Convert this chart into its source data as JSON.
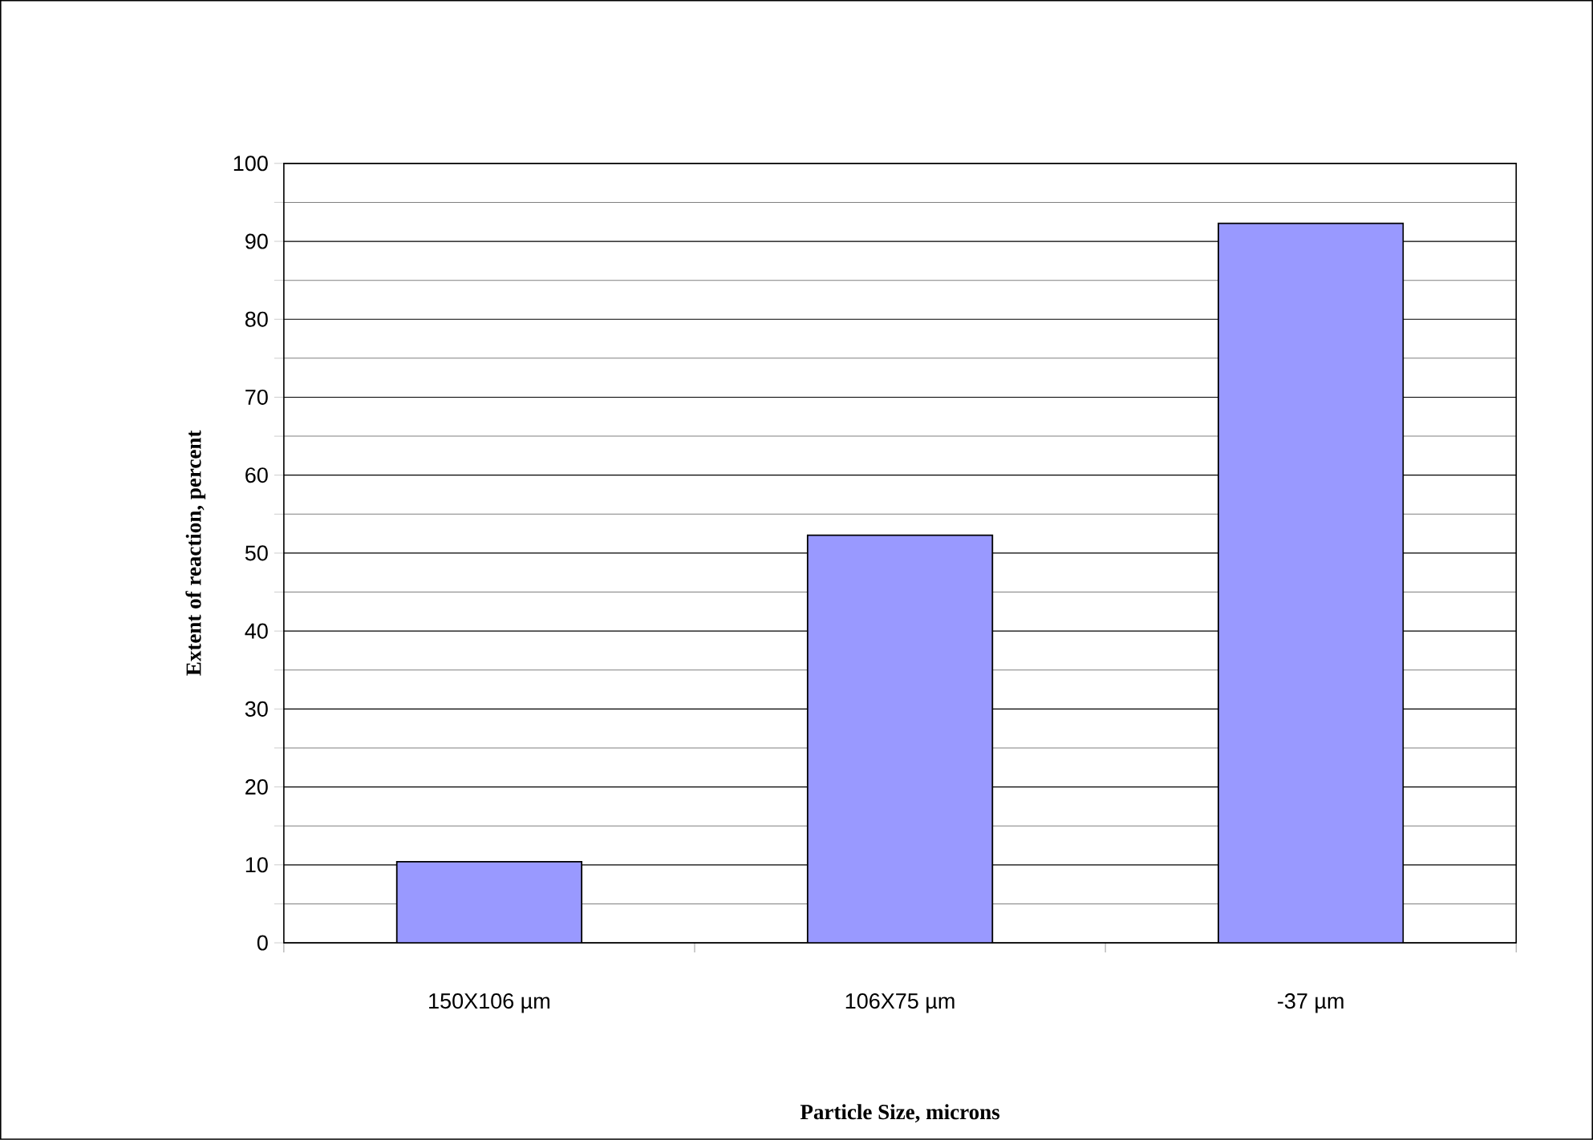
{
  "chart_data": {
    "type": "bar",
    "xlabel": "Particle Size, microns",
    "ylabel": "Extent of reaction, percent",
    "categories": [
      "150X106 µm",
      "106X75 µm",
      "-37 µm"
    ],
    "values": [
      10.4,
      52.3,
      92.3
    ],
    "color": "#9999ff",
    "ylim": [
      0,
      100
    ],
    "yticks": [
      0,
      10,
      20,
      30,
      40,
      50,
      60,
      70,
      80,
      90,
      100
    ],
    "grid": "y"
  }
}
